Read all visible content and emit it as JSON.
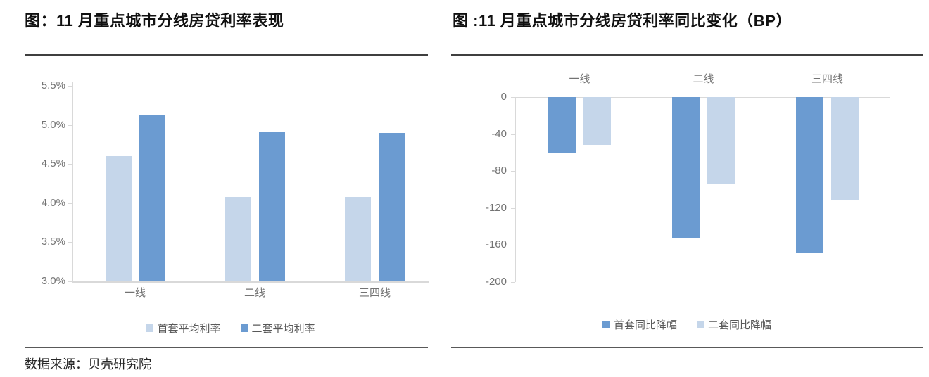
{
  "source_note": "数据来源：贝壳研究院",
  "colors": {
    "light": "#c5d6ea",
    "dark": "#6b9bd1",
    "axis_gray": "#d9d9d9",
    "label_gray": "#737373",
    "rule_dark": "#595959"
  },
  "chart_data": [
    {
      "type": "bar",
      "title": "图：11 月重点城市分线房贷利率表现",
      "categories": [
        "一线",
        "二线",
        "三四线"
      ],
      "series": [
        {
          "name": "首套平均利率",
          "color_key": "light",
          "values": [
            4.6,
            4.08,
            4.08
          ]
        },
        {
          "name": "二套平均利率",
          "color_key": "dark",
          "values": [
            5.13,
            4.91,
            4.9
          ]
        }
      ],
      "unit": "%",
      "y_ticks": [
        "5.5%",
        "5.0%",
        "4.5%",
        "4.0%",
        "3.5%",
        "3.0%"
      ],
      "ylim": [
        3.0,
        5.5
      ],
      "grid": false,
      "legend_position": "bottom"
    },
    {
      "type": "bar",
      "title": "图 :11 月重点城市分线房贷利率同比变化（BP）",
      "categories": [
        "一线",
        "二线",
        "三四线"
      ],
      "series": [
        {
          "name": "首套同比降幅",
          "color_key": "dark",
          "values": [
            -60,
            -152,
            -169
          ]
        },
        {
          "name": "二套同比降幅",
          "color_key": "light",
          "values": [
            -52,
            -94,
            -112
          ]
        }
      ],
      "unit": "BP",
      "y_ticks": [
        "0",
        "-40",
        "-80",
        "-120",
        "-160",
        "-200"
      ],
      "ylim": [
        -200,
        0
      ],
      "grid": false,
      "legend_position": "bottom"
    }
  ]
}
